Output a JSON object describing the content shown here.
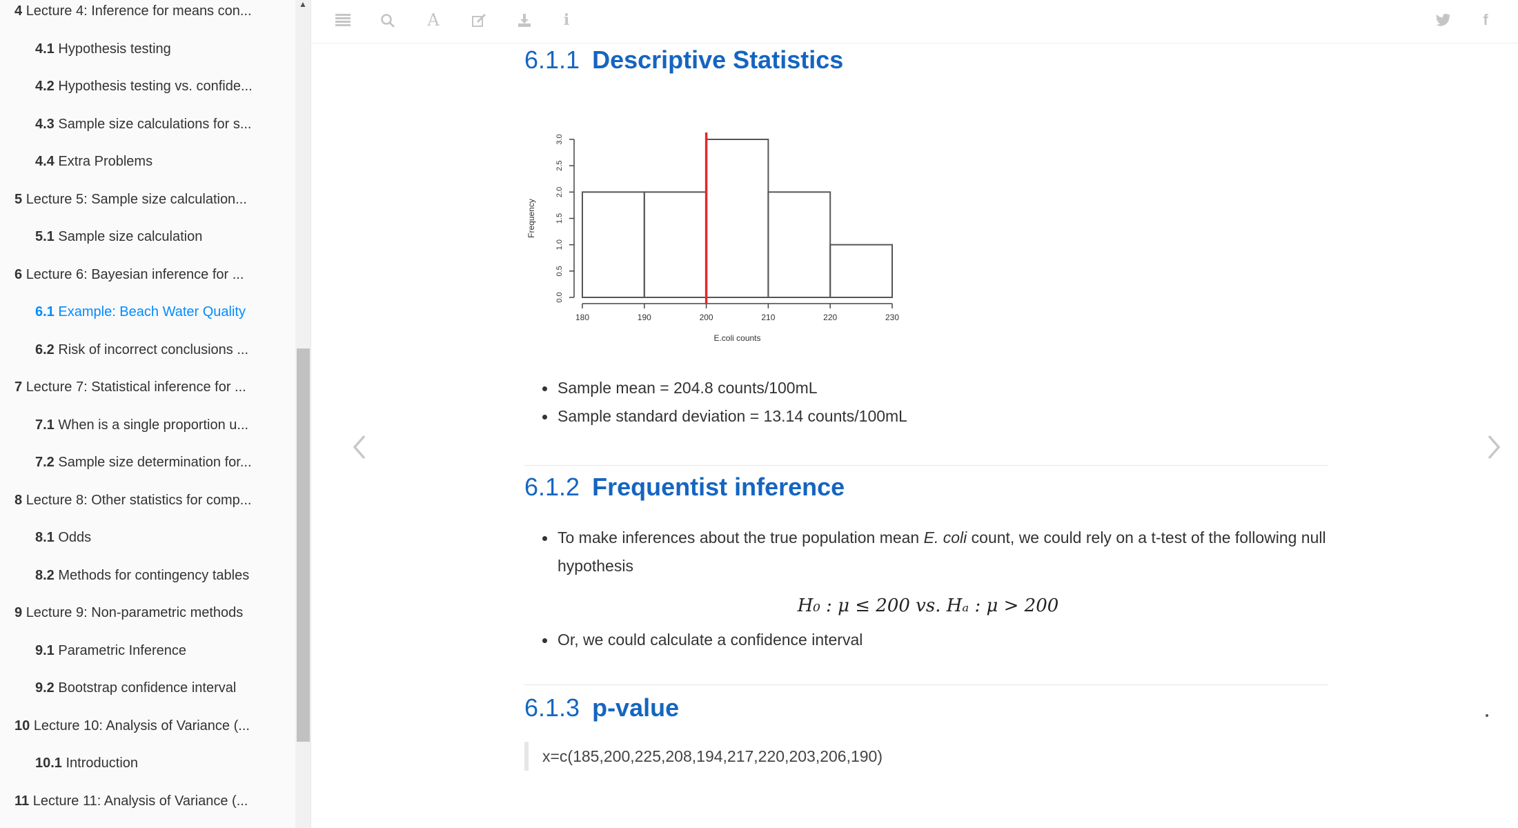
{
  "toc": [
    {
      "num": "4",
      "text": "Lecture 4: Inference for means con...",
      "level": "chapter"
    },
    {
      "num": "4.1",
      "text": "Hypothesis testing",
      "level": "section"
    },
    {
      "num": "4.2",
      "text": "Hypothesis testing vs. confide...",
      "level": "section"
    },
    {
      "num": "4.3",
      "text": "Sample size calculations for s...",
      "level": "section"
    },
    {
      "num": "4.4",
      "text": "Extra Problems",
      "level": "section"
    },
    {
      "num": "5",
      "text": "Lecture 5: Sample size calculation...",
      "level": "chapter"
    },
    {
      "num": "5.1",
      "text": "Sample size calculation",
      "level": "section"
    },
    {
      "num": "6",
      "text": "Lecture 6: Bayesian inference for ...",
      "level": "chapter"
    },
    {
      "num": "6.1",
      "text": "Example: Beach Water Quality",
      "level": "section",
      "active": true
    },
    {
      "num": "6.2",
      "text": "Risk of incorrect conclusions ...",
      "level": "section"
    },
    {
      "num": "7",
      "text": "Lecture 7: Statistical inference for ...",
      "level": "chapter"
    },
    {
      "num": "7.1",
      "text": "When is a single proportion u...",
      "level": "section"
    },
    {
      "num": "7.2",
      "text": "Sample size determination for...",
      "level": "section"
    },
    {
      "num": "8",
      "text": "Lecture 8: Other statistics for comp...",
      "level": "chapter"
    },
    {
      "num": "8.1",
      "text": "Odds",
      "level": "section"
    },
    {
      "num": "8.2",
      "text": "Methods for contingency tables",
      "level": "section"
    },
    {
      "num": "9",
      "text": "Lecture 9: Non-parametric methods",
      "level": "chapter"
    },
    {
      "num": "9.1",
      "text": "Parametric Inference",
      "level": "section"
    },
    {
      "num": "9.2",
      "text": "Bootstrap confidence interval",
      "level": "section"
    },
    {
      "num": "10",
      "text": "Lecture 10: Analysis of Variance (...",
      "level": "chapter"
    },
    {
      "num": "10.1",
      "text": "Introduction",
      "level": "section"
    },
    {
      "num": "11",
      "text": "Lecture 11: Analysis of Variance (...",
      "level": "chapter"
    }
  ],
  "toolbar": {
    "left_icons": [
      "menu-icon",
      "search-icon",
      "font-icon",
      "edit-icon",
      "download-icon",
      "info-icon"
    ],
    "right_icons": [
      "twitter-icon",
      "facebook-icon"
    ],
    "icon_color": "#c5c5c5"
  },
  "sections": {
    "s1": {
      "num": "6.1.1",
      "title": "Descriptive Statistics"
    },
    "s2": {
      "num": "6.1.2",
      "title": "Frequentist inference"
    },
    "s3": {
      "num": "6.1.3",
      "title": "p-value"
    }
  },
  "stats": {
    "mean": "Sample mean = 204.8 counts/100mL",
    "sd": "Sample standard deviation = 13.14 counts/100mL"
  },
  "frequentist": {
    "b1_pre": "To make inferences about the true population mean ",
    "b1_em": "E. coli",
    "b1_post": " count, we could rely on a t-test of the following null hypothesis",
    "math": "H₀ : μ ≤ 200 vs. Hₐ : μ > 200",
    "b2": "Or, we could calculate a confidence interval"
  },
  "code": "x=c(185,200,225,208,194,217,220,203,206,190)",
  "colors": {
    "heading": "#1565c0",
    "active_link": "#008cff",
    "reference_line": "#e8262a"
  },
  "chart_data": {
    "type": "bar",
    "subtype": "histogram",
    "bins": [
      [
        180,
        190
      ],
      [
        190,
        200
      ],
      [
        200,
        210
      ],
      [
        210,
        220
      ],
      [
        220,
        230
      ]
    ],
    "values": [
      2,
      2,
      3,
      2,
      1
    ],
    "xlabel": "E.coli counts",
    "ylabel": "Frequency",
    "xticks": [
      180,
      190,
      200,
      210,
      220,
      230
    ],
    "yticks": [
      "0.0",
      "0.5",
      "1.0",
      "1.5",
      "2.0",
      "2.5",
      "3.0"
    ],
    "ylim": [
      0,
      3
    ],
    "reference_line_x": 200
  }
}
